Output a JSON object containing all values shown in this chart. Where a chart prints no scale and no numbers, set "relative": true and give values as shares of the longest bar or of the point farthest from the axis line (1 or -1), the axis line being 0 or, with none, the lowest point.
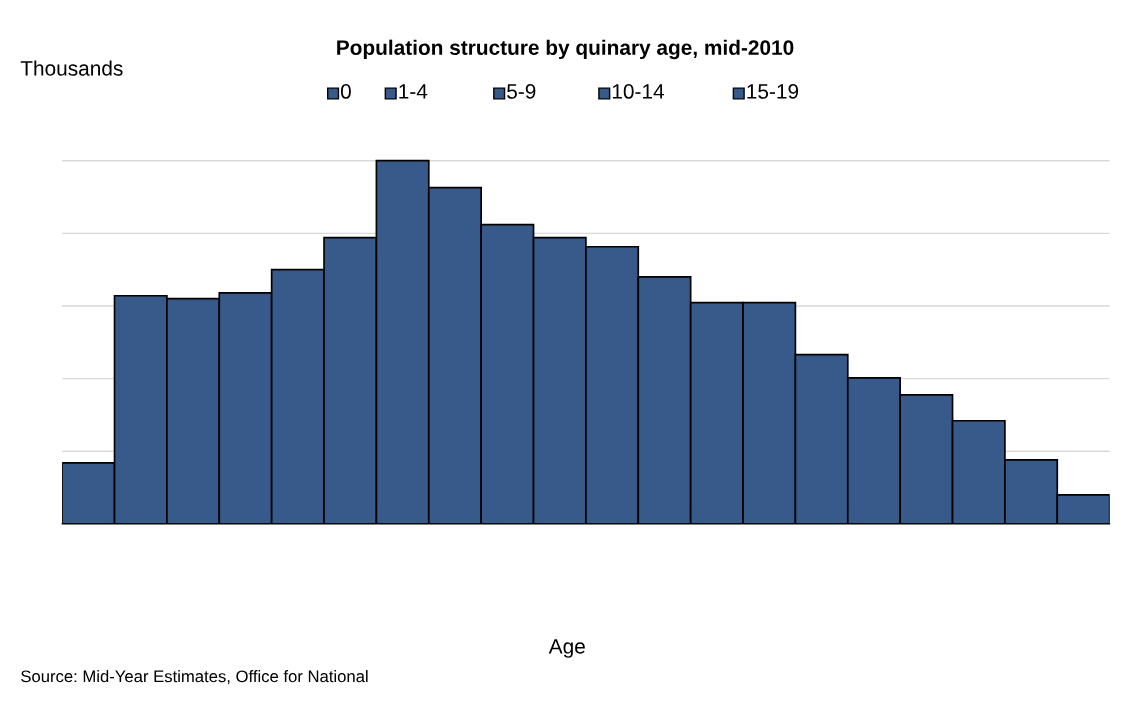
{
  "chart_data": {
    "type": "bar",
    "title": "Population structure by quinary age, mid-2010",
    "ylabel": "Thousands",
    "annotations": [
      "0",
      "1-4",
      "5-9",
      "10-14",
      "15-19",
      "Age",
      "Source: Mid-Year Estimates, Office for National"
    ],
    "categories": [
      null,
      null,
      null,
      null,
      null,
      null,
      null,
      null,
      null,
      null,
      null,
      null,
      null,
      null,
      null,
      null,
      null,
      null,
      null,
      null
    ],
    "values": [
      0.168,
      0.628,
      0.62,
      0.636,
      0.7,
      0.788,
      1,
      0.926,
      0.824,
      0.788,
      0.763,
      0.68,
      0.609,
      0.609,
      0.466,
      0.402,
      0.355,
      0.284,
      0.176,
      0.08
    ],
    "color": "#375a8a",
    "relative": true,
    "grid": "y",
    "tick_labels": false
  }
}
